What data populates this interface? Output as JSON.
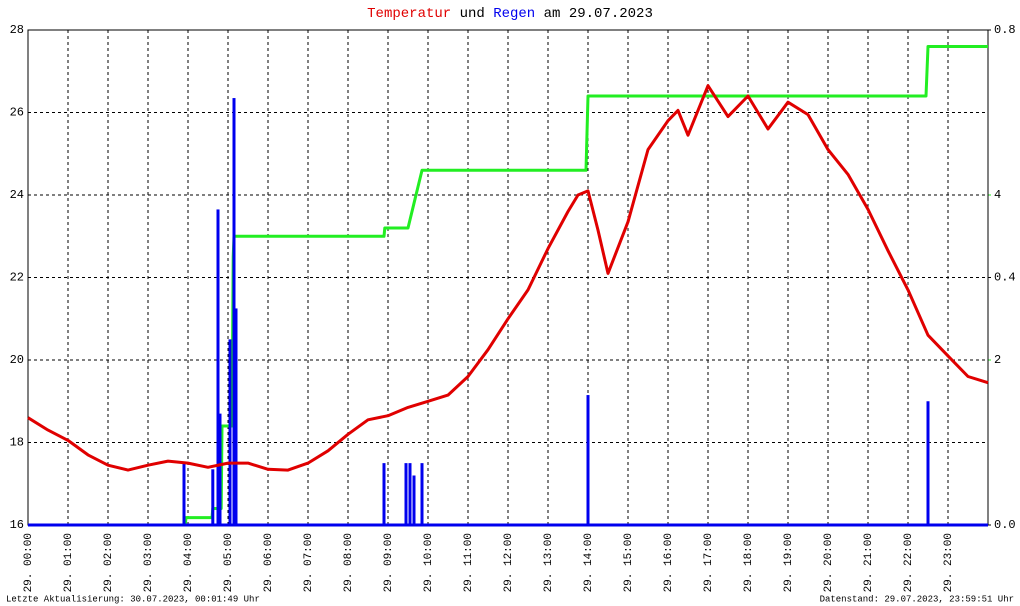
{
  "chart_data": {
    "type": "line",
    "title": [
      "Temperatur",
      "und",
      "Regen",
      "am 29.07.2023"
    ],
    "footer_left": "Letzte Aktualisierung: 30.07.2023, 00:01:49 Uhr",
    "footer_right": "Datenstand: 29.07.2023, 23:59:51 Uhr",
    "xlim": [
      0,
      24
    ],
    "xticks": [
      {
        "value": 0,
        "label": "29. 00:00"
      },
      {
        "value": 1,
        "label": "29. 01:00"
      },
      {
        "value": 2,
        "label": "29. 02:00"
      },
      {
        "value": 3,
        "label": "29. 03:00"
      },
      {
        "value": 4,
        "label": "29. 04:00"
      },
      {
        "value": 5,
        "label": "29. 05:00"
      },
      {
        "value": 6,
        "label": "29. 06:00"
      },
      {
        "value": 7,
        "label": "29. 07:00"
      },
      {
        "value": 8,
        "label": "29. 08:00"
      },
      {
        "value": 9,
        "label": "29. 09:00"
      },
      {
        "value": 10,
        "label": "29. 10:00"
      },
      {
        "value": 11,
        "label": "29. 11:00"
      },
      {
        "value": 12,
        "label": "29. 12:00"
      },
      {
        "value": 13,
        "label": "29. 13:00"
      },
      {
        "value": 14,
        "label": "29. 14:00"
      },
      {
        "value": 15,
        "label": "29. 15:00"
      },
      {
        "value": 16,
        "label": "29. 16:00"
      },
      {
        "value": 17,
        "label": "29. 17:00"
      },
      {
        "value": 18,
        "label": "29. 18:00"
      },
      {
        "value": 19,
        "label": "29. 19:00"
      },
      {
        "value": 20,
        "label": "29. 20:00"
      },
      {
        "value": 21,
        "label": "29. 21:00"
      },
      {
        "value": 22,
        "label": "29. 22:00"
      },
      {
        "value": 23,
        "label": "29. 23:00"
      }
    ],
    "ylim": [
      16,
      28
    ],
    "yticks": [
      16,
      18,
      20,
      22,
      24,
      26,
      28
    ],
    "y2lim": [
      0,
      0.8
    ],
    "y2ticks": [
      {
        "value": 0,
        "label": "0.0"
      },
      0.4,
      0.8
    ],
    "y3lim": [
      0,
      6
    ],
    "y3ticks": [
      2,
      4
    ],
    "y3color": "#22ee22",
    "grid": true,
    "series": [
      {
        "name": "Temperatur",
        "color": "#e00000",
        "type": "line",
        "axis": "y",
        "x": [
          0,
          0.5,
          1,
          1.5,
          2,
          2.5,
          3,
          3.5,
          4,
          4.5,
          5,
          5.5,
          6,
          6.5,
          7,
          7.5,
          8,
          8.5,
          9,
          9.5,
          10,
          10.5,
          11,
          11.5,
          12,
          12.5,
          13,
          13.5,
          13.75,
          14,
          14.25,
          14.5,
          15,
          15.5,
          16,
          16.25,
          16.5,
          17,
          17.5,
          18,
          18.5,
          19,
          19.5,
          20,
          20.5,
          21,
          21.5,
          22,
          22.5,
          23,
          23.5,
          24
        ],
        "values": [
          18.6,
          18.3,
          18.05,
          17.7,
          17.45,
          17.33,
          17.45,
          17.55,
          17.5,
          17.4,
          17.5,
          17.5,
          17.35,
          17.33,
          17.5,
          17.8,
          18.2,
          18.55,
          18.65,
          18.85,
          19.0,
          19.15,
          19.6,
          20.25,
          21.0,
          21.7,
          22.7,
          23.6,
          24.0,
          24.1,
          23.15,
          22.1,
          23.35,
          25.1,
          25.8,
          26.05,
          25.45,
          26.65,
          25.9,
          26.4,
          25.6,
          26.25,
          25.95,
          25.1,
          24.5,
          23.65,
          22.65,
          21.7,
          20.6,
          20.1,
          19.6,
          19.45
        ]
      },
      {
        "name": "Regen",
        "color": "#0000ee",
        "type": "bar",
        "axis": "y2",
        "x": [
          3.9,
          4.62,
          4.75,
          4.8,
          5.05,
          5.15,
          5.2,
          8.9,
          9.45,
          9.55,
          9.65,
          9.85,
          14.0,
          22.5
        ],
        "values": [
          0.1,
          0.09,
          0.51,
          0.18,
          0.3,
          0.69,
          0.35,
          0.1,
          0.1,
          0.1,
          0.08,
          0.1,
          0.21,
          0.2
        ]
      },
      {
        "color": "#22ee22",
        "type": "line",
        "axis": "y3",
        "x": [
          0,
          3.93,
          3.95,
          4.6,
          4.62,
          4.83,
          4.85,
          5.1,
          5.13,
          5.15,
          8.9,
          8.92,
          9.5,
          9.7,
          9.85,
          13.95,
          14.0,
          22.45,
          22.5,
          24
        ],
        "values": [
          0,
          0,
          0.09,
          0.09,
          0.2,
          0.2,
          1.2,
          1.2,
          3.25,
          3.5,
          3.5,
          3.6,
          3.6,
          4.0,
          4.3,
          4.3,
          5.2,
          5.2,
          5.8,
          5.8
        ]
      }
    ]
  }
}
